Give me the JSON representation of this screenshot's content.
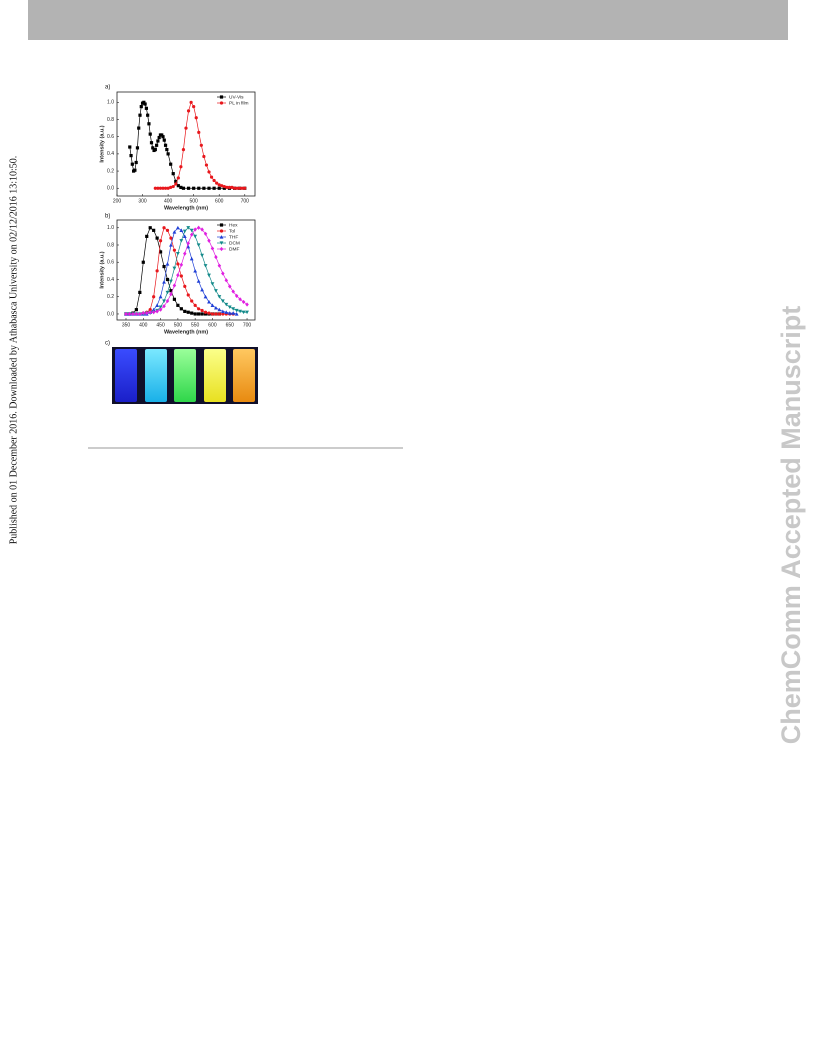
{
  "side_note": "Published on 01 December 2016. Downloaded by Athabasca University on 02/12/2016 13:10:50.",
  "watermark": "ChemComm Accepted Manuscript",
  "figure": {
    "panel_labels": [
      "a)",
      "b)",
      "c)"
    ]
  },
  "chart_data": [
    {
      "type": "line",
      "xlabel": "Wavelength (nm)",
      "ylabel": "Intensity (a.u.)",
      "xlim": [
        200,
        740
      ],
      "ylim": [
        -0.09,
        1.12
      ],
      "xticks": [
        200,
        300,
        400,
        500,
        600,
        700
      ],
      "yticks": [
        {
          "value": 0,
          "label": "0.0"
        },
        {
          "value": 0.2,
          "label": "0.2"
        },
        {
          "value": 0.4,
          "label": "0.4"
        },
        {
          "value": 0.6,
          "label": "0.6"
        },
        {
          "value": 0.8,
          "label": "0.8"
        },
        {
          "value": 1,
          "label": "1.0"
        }
      ],
      "legend": "upper right",
      "series": [
        {
          "name": "UV-Vis",
          "color": "#000000",
          "marker": "square",
          "x": [
            250,
            255,
            260,
            265,
            270,
            275,
            280,
            285,
            290,
            295,
            300,
            305,
            310,
            315,
            320,
            325,
            330,
            335,
            340,
            345,
            350,
            355,
            360,
            365,
            370,
            375,
            380,
            385,
            390,
            395,
            400,
            410,
            420,
            430,
            440,
            450,
            460,
            480,
            500,
            520,
            540,
            560,
            580,
            600,
            620,
            640,
            660,
            680,
            700
          ],
          "values": [
            0.48,
            0.38,
            0.28,
            0.2,
            0.21,
            0.3,
            0.47,
            0.7,
            0.85,
            0.95,
            0.99,
            1.0,
            0.98,
            0.93,
            0.85,
            0.75,
            0.63,
            0.53,
            0.47,
            0.44,
            0.45,
            0.5,
            0.55,
            0.59,
            0.62,
            0.62,
            0.6,
            0.56,
            0.5,
            0.45,
            0.4,
            0.28,
            0.17,
            0.08,
            0.03,
            0.01,
            0,
            0,
            0,
            0,
            0,
            0,
            0,
            0,
            0,
            0,
            0,
            0,
            0
          ]
        },
        {
          "name": "PL in film",
          "color": "#e8171c",
          "marker": "circle",
          "x": [
            350,
            360,
            370,
            380,
            390,
            400,
            410,
            420,
            430,
            440,
            450,
            460,
            470,
            480,
            490,
            500,
            510,
            520,
            530,
            540,
            550,
            560,
            570,
            580,
            590,
            600,
            610,
            620,
            630,
            640,
            650,
            660,
            670,
            680,
            690,
            700
          ],
          "values": [
            0,
            0,
            0,
            0,
            0,
            0,
            0.01,
            0.02,
            0.05,
            0.12,
            0.25,
            0.45,
            0.7,
            0.9,
            1.0,
            0.95,
            0.82,
            0.65,
            0.5,
            0.37,
            0.27,
            0.19,
            0.13,
            0.09,
            0.06,
            0.04,
            0.03,
            0.02,
            0.01,
            0.01,
            0.01,
            0,
            0,
            0,
            0,
            0
          ]
        }
      ]
    },
    {
      "type": "line",
      "xlabel": "Wavelength (nm)",
      "ylabel": "Intensity (a.u.)",
      "xlim": [
        324,
        723
      ],
      "ylim": [
        -0.07,
        1.09
      ],
      "xticks": [
        350,
        400,
        450,
        500,
        550,
        600,
        650,
        700
      ],
      "yticks": [
        {
          "value": 0,
          "label": "0.0"
        },
        {
          "value": 0.2,
          "label": "0.2"
        },
        {
          "value": 0.4,
          "label": "0.4"
        },
        {
          "value": 0.6,
          "label": "0.6"
        },
        {
          "value": 0.8,
          "label": "0.8"
        },
        {
          "value": 1,
          "label": "1.0"
        }
      ],
      "legend": "upper right",
      "x": [
        350,
        360,
        370,
        380,
        390,
        400,
        410,
        420,
        430,
        440,
        450,
        460,
        470,
        480,
        490,
        500,
        510,
        520,
        530,
        540,
        550,
        560,
        570,
        580,
        590,
        600,
        610,
        620,
        630,
        640,
        650,
        660,
        670,
        680,
        690,
        700
      ],
      "series": [
        {
          "name": "Hex",
          "color": "#000000",
          "marker": "square",
          "values": [
            0,
            0,
            0.01,
            0.05,
            0.25,
            0.6,
            0.9,
            1.0,
            0.97,
            0.88,
            0.72,
            0.55,
            0.4,
            0.27,
            0.17,
            0.1,
            0.06,
            0.03,
            0.02,
            0.01,
            0,
            0,
            0,
            0,
            0,
            0,
            0,
            0,
            null,
            null,
            null,
            null,
            null,
            null,
            null,
            null
          ]
        },
        {
          "name": "Tol",
          "color": "#e8171c",
          "marker": "circle",
          "values": [
            0,
            0,
            0,
            0,
            0,
            0.01,
            0.02,
            0.05,
            0.2,
            0.5,
            0.85,
            1.0,
            0.97,
            0.88,
            0.74,
            0.58,
            0.44,
            0.32,
            0.22,
            0.15,
            0.1,
            0.06,
            0.04,
            0.02,
            0.01,
            0,
            0,
            0,
            0,
            0,
            0,
            0,
            null,
            null,
            null,
            null
          ]
        },
        {
          "name": "THF",
          "color": "#1f3fd6",
          "marker": "triangle-up",
          "values": [
            0,
            0,
            0,
            0,
            0,
            0,
            0,
            0.02,
            0.05,
            0.1,
            0.2,
            0.37,
            0.58,
            0.8,
            0.95,
            1.0,
            0.97,
            0.9,
            0.78,
            0.64,
            0.5,
            0.38,
            0.28,
            0.2,
            0.14,
            0.1,
            0.07,
            0.05,
            0.03,
            0.02,
            0.01,
            0.01,
            0,
            null,
            null,
            null
          ]
        },
        {
          "name": "DCM",
          "color": "#138a8a",
          "marker": "triangle-down",
          "values": [
            0,
            0,
            0,
            0,
            0,
            0,
            0.01,
            0.01,
            0.02,
            0.04,
            0.08,
            0.15,
            0.25,
            0.38,
            0.53,
            0.7,
            0.85,
            0.96,
            1.0,
            0.97,
            0.9,
            0.8,
            0.68,
            0.56,
            0.45,
            0.35,
            0.27,
            0.2,
            0.15,
            0.11,
            0.08,
            0.06,
            0.04,
            0.03,
            0.02,
            0.02
          ]
        },
        {
          "name": "DMF",
          "color": "#e020e0",
          "marker": "diamond",
          "values": [
            0,
            0,
            0,
            0,
            0,
            0.01,
            0.01,
            0.02,
            0.02,
            0.03,
            0.05,
            0.09,
            0.15,
            0.23,
            0.33,
            0.45,
            0.57,
            0.7,
            0.82,
            0.92,
            0.98,
            1.0,
            0.98,
            0.93,
            0.85,
            0.76,
            0.66,
            0.56,
            0.47,
            0.39,
            0.32,
            0.26,
            0.21,
            0.17,
            0.14,
            0.11
          ]
        }
      ]
    }
  ]
}
